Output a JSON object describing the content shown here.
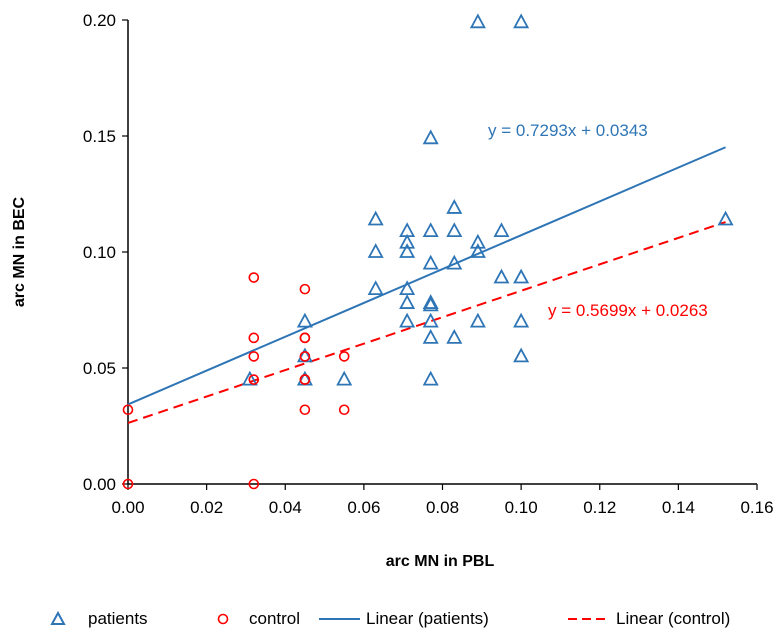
{
  "chart_data": {
    "type": "scatter",
    "xlabel": "arc MN in PBL",
    "ylabel": "arc MN in BEC",
    "xlim": [
      0,
      0.16
    ],
    "ylim": [
      0,
      0.2
    ],
    "x_ticks": [
      "0.00",
      "0.02",
      "0.04",
      "0.06",
      "0.08",
      "0.10",
      "0.12",
      "0.14",
      "0.16"
    ],
    "y_ticks": [
      "0.00",
      "0.05",
      "0.10",
      "0.15",
      "0.20"
    ],
    "grid": false,
    "legend_position": "bottom",
    "series": [
      {
        "name": "patients",
        "marker": "triangle",
        "color": "#2E75B6",
        "points": [
          [
            0.089,
            0.199
          ],
          [
            0.1,
            0.199
          ],
          [
            0.077,
            0.149
          ],
          [
            0.083,
            0.119
          ],
          [
            0.063,
            0.114
          ],
          [
            0.071,
            0.109
          ],
          [
            0.077,
            0.109
          ],
          [
            0.083,
            0.109
          ],
          [
            0.095,
            0.109
          ],
          [
            0.071,
            0.104
          ],
          [
            0.089,
            0.104
          ],
          [
            0.063,
            0.1
          ],
          [
            0.071,
            0.1
          ],
          [
            0.089,
            0.1
          ],
          [
            0.077,
            0.095
          ],
          [
            0.083,
            0.095
          ],
          [
            0.095,
            0.089
          ],
          [
            0.1,
            0.089
          ],
          [
            0.063,
            0.084
          ],
          [
            0.071,
            0.084
          ],
          [
            0.071,
            0.078
          ],
          [
            0.077,
            0.078
          ],
          [
            0.077,
            0.077
          ],
          [
            0.045,
            0.07
          ],
          [
            0.071,
            0.07
          ],
          [
            0.077,
            0.07
          ],
          [
            0.089,
            0.07
          ],
          [
            0.1,
            0.07
          ],
          [
            0.077,
            0.063
          ],
          [
            0.083,
            0.063
          ],
          [
            0.045,
            0.055
          ],
          [
            0.1,
            0.055
          ],
          [
            0.031,
            0.045
          ],
          [
            0.045,
            0.045
          ],
          [
            0.055,
            0.045
          ],
          [
            0.077,
            0.045
          ],
          [
            0.152,
            0.114
          ]
        ]
      },
      {
        "name": "control",
        "marker": "circle",
        "color": "#FF0000",
        "points": [
          [
            0.0,
            0.032
          ],
          [
            0.0,
            0.0
          ],
          [
            0.032,
            0.089
          ],
          [
            0.032,
            0.063
          ],
          [
            0.032,
            0.055
          ],
          [
            0.032,
            0.045
          ],
          [
            0.032,
            0.0
          ],
          [
            0.045,
            0.084
          ],
          [
            0.045,
            0.063
          ],
          [
            0.045,
            0.063
          ],
          [
            0.045,
            0.055
          ],
          [
            0.045,
            0.045
          ],
          [
            0.045,
            0.045
          ],
          [
            0.045,
            0.032
          ],
          [
            0.055,
            0.055
          ],
          [
            0.055,
            0.032
          ]
        ]
      }
    ],
    "trendlines": [
      {
        "name": "Linear (patients)",
        "color": "#2E75B6",
        "style": "solid",
        "slope": 0.7293,
        "intercept": 0.0343,
        "x_range": [
          0,
          0.152
        ],
        "equation": "y = 0.7293x + 0.0343"
      },
      {
        "name": "Linear (control)",
        "color": "#FF0000",
        "style": "dashed",
        "slope": 0.5699,
        "intercept": 0.0263,
        "x_range": [
          0,
          0.152
        ],
        "equation": "y = 0.5699x + 0.0263"
      }
    ],
    "legend": [
      {
        "label": "patients",
        "kind": "triangle",
        "color": "#2E75B6"
      },
      {
        "label": "control",
        "kind": "circle",
        "color": "#FF0000"
      },
      {
        "label": "Linear (patients)",
        "kind": "solid",
        "color": "#2E75B6"
      },
      {
        "label": "Linear (control)",
        "kind": "dashed",
        "color": "#FF0000"
      }
    ]
  }
}
